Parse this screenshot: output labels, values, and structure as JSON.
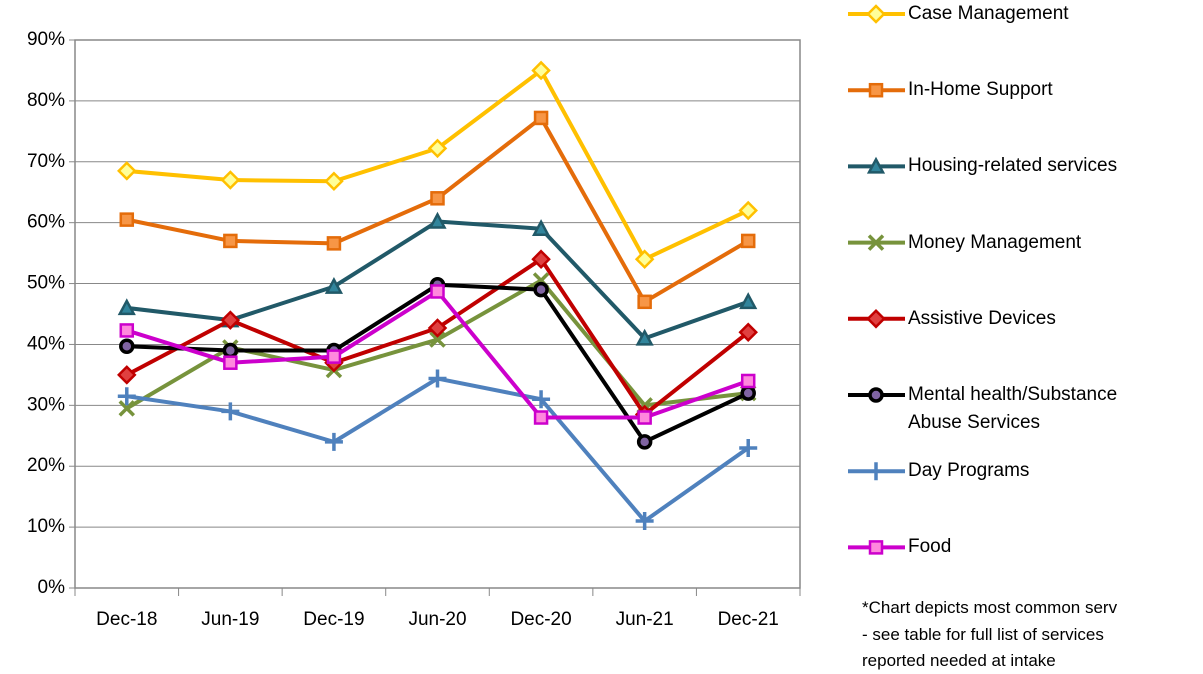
{
  "chart_data": {
    "type": "line",
    "categories": [
      "Dec-18",
      "Jun-19",
      "Dec-19",
      "Jun-20",
      "Dec-20",
      "Jun-21",
      "Dec-21"
    ],
    "series": [
      {
        "name": "Case Management",
        "color": "#FFC000",
        "marker": "diamond",
        "marker_fill": "#FFFF99",
        "values": [
          68.5,
          67,
          66.8,
          72.2,
          85,
          54,
          62
        ]
      },
      {
        "name": "In-Home Support",
        "color": "#E46C0A",
        "marker": "square",
        "marker_fill": "#F79646",
        "values": [
          60.5,
          57,
          56.6,
          64,
          77.2,
          47,
          57
        ]
      },
      {
        "name": "Housing-related services",
        "color": "#215968",
        "marker": "triangle",
        "marker_fill": "#31859C",
        "values": [
          46,
          44,
          49.5,
          60.2,
          59,
          41,
          47
        ]
      },
      {
        "name": "Money Management",
        "color": "#77933C",
        "marker": "x",
        "marker_fill": "#77933C",
        "values": [
          29.5,
          39.5,
          35.8,
          40.8,
          50.5,
          30,
          32
        ]
      },
      {
        "name": "Assistive Devices",
        "color": "#C00000",
        "marker": "diamond",
        "marker_fill": "#E04040",
        "values": [
          35,
          44,
          37,
          42.7,
          54,
          28.5,
          42
        ]
      },
      {
        "name": "Mental health/Substance Abuse Services",
        "color": "#000000",
        "marker": "circle",
        "marker_fill": "#8064A2",
        "values": [
          39.7,
          39,
          39,
          49.8,
          49,
          24,
          32
        ]
      },
      {
        "name": "Day Programs",
        "color": "#4F81BD",
        "marker": "plus",
        "marker_fill": "#4F81BD",
        "values": [
          31.5,
          29,
          24,
          34.4,
          31,
          11,
          23
        ]
      },
      {
        "name": "Food",
        "color": "#CC00CC",
        "marker": "square",
        "marker_fill": "#FF88DD",
        "values": [
          42.3,
          37,
          38,
          48.7,
          28,
          28,
          34
        ]
      }
    ],
    "ylim": [
      0,
      90
    ],
    "yticks": [
      {
        "value": 0,
        "label": "0%"
      },
      {
        "value": 10,
        "label": "10%"
      },
      {
        "value": 20,
        "label": "20%"
      },
      {
        "value": 30,
        "label": "30%"
      },
      {
        "value": 40,
        "label": "40%"
      },
      {
        "value": 50,
        "label": "50%"
      },
      {
        "value": 60,
        "label": "60%"
      },
      {
        "value": 70,
        "label": "70%"
      },
      {
        "value": 80,
        "label": "80%"
      },
      {
        "value": 90,
        "label": "90%"
      }
    ],
    "grid": true,
    "legend": "right",
    "note": [
      "*Chart depicts most common serv",
      "- see table for full list of services",
      "reported needed at intake"
    ]
  }
}
